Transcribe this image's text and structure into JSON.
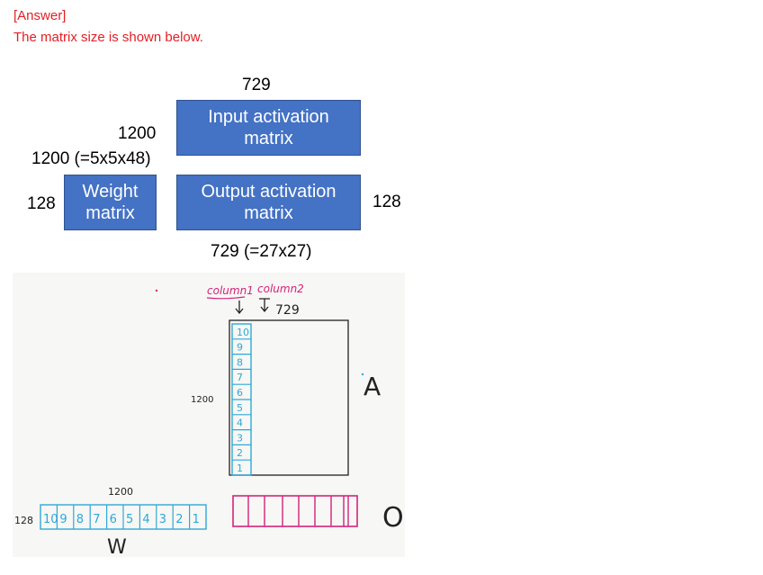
{
  "answer": {
    "label": "[Answer]",
    "text": "The matrix size is shown below."
  },
  "diagram": {
    "input_box": {
      "line1": "Input activation",
      "line2": "matrix"
    },
    "weight_box": {
      "line1": "Weight",
      "line2": "matrix"
    },
    "output_box": {
      "line1": "Output activation",
      "line2": "matrix"
    },
    "input_width": "729",
    "input_height": "1200",
    "weight_width": "1200 (=5x5x48)",
    "weight_height": "128",
    "output_height": "128",
    "output_width": "729 (=27x27)"
  },
  "sketch": {
    "column1": "column1",
    "column2": "column2",
    "width": "729",
    "height_a": "1200",
    "a_label": "A",
    "w_width": "1200",
    "w_height": "128",
    "w_label": "W",
    "o_label": "O",
    "column_digits": [
      "10",
      "9",
      "8",
      "7",
      "6",
      "5",
      "4",
      "3",
      "2",
      "1"
    ],
    "row_digits": [
      "10",
      "9",
      "8",
      "7",
      "6",
      "5",
      "4",
      "3",
      "2",
      "1"
    ],
    "colors": {
      "blue": "#2ea8d8",
      "magenta": "#d4237a",
      "black": "#222222"
    }
  }
}
